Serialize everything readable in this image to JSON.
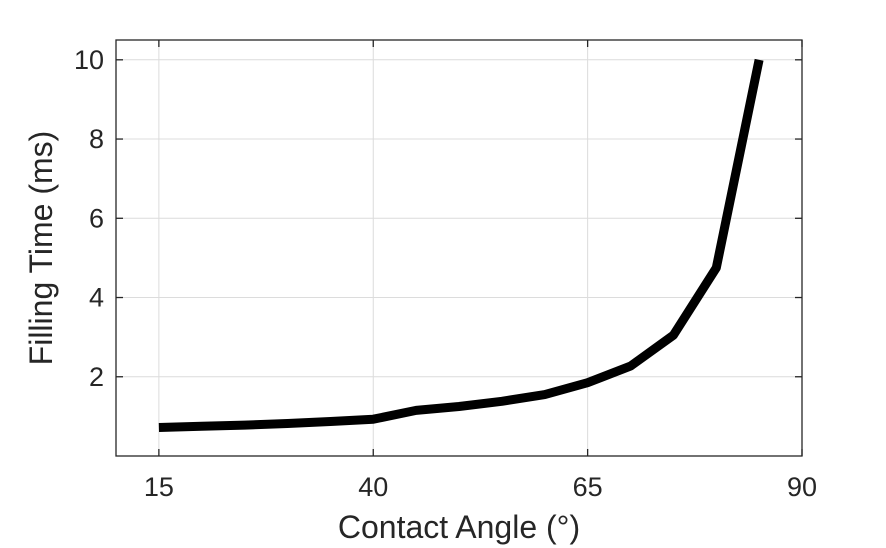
{
  "chart_data": {
    "type": "line",
    "title": "",
    "xlabel": "Contact Angle (°)",
    "ylabel": "Filling Time (ms)",
    "xlim": [
      10,
      90
    ],
    "ylim": [
      0,
      10.5
    ],
    "xticks": [
      15,
      40,
      65,
      90
    ],
    "yticks": [
      2,
      4,
      6,
      8,
      10
    ],
    "xtick_labels": [
      "15",
      "40",
      "65",
      "90"
    ],
    "ytick_labels": [
      "2",
      "4",
      "6",
      "8",
      "10"
    ],
    "grid": true,
    "legend": "none",
    "series": [
      {
        "color": "#000000",
        "x": [
          15,
          20,
          25,
          30,
          35,
          40,
          45,
          50,
          55,
          60,
          65,
          70,
          75,
          80,
          85
        ],
        "y": [
          0.72,
          0.75,
          0.78,
          0.82,
          0.87,
          0.93,
          1.15,
          1.25,
          1.38,
          1.55,
          1.85,
          2.27,
          3.05,
          4.75,
          10.0
        ]
      }
    ]
  }
}
